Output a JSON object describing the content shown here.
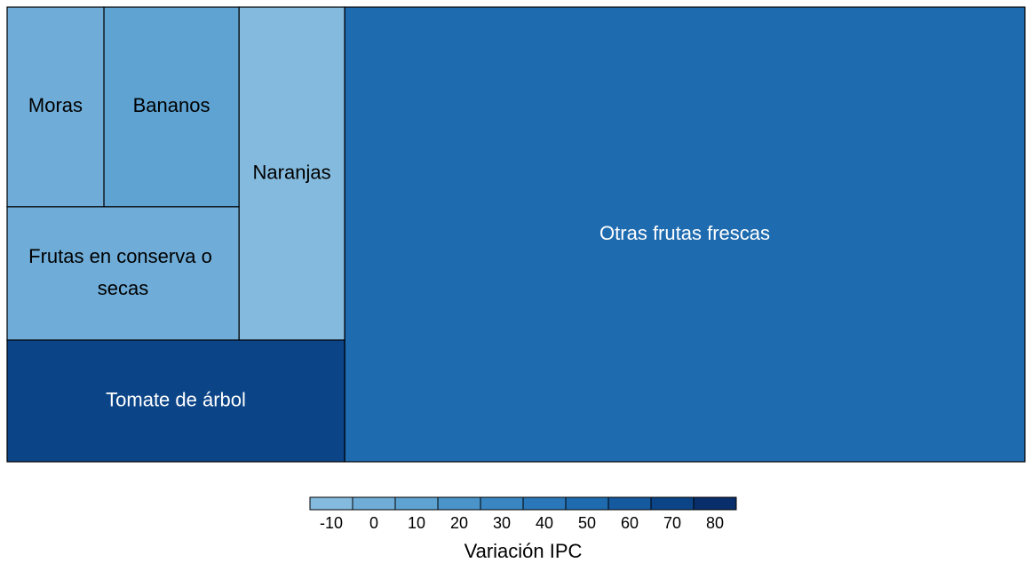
{
  "chart_data": {
    "type": "treemap",
    "categories": [
      "Otras frutas frescas",
      "Tomate de árbol",
      "Naranjas",
      "Frutas en conserva o secas",
      "Bananos",
      "Moras"
    ],
    "sizes": [
      392.2,
      52.1,
      44.6,
      39.2,
      34.2,
      24.5
    ],
    "values": [
      52,
      74,
      -9,
      0,
      7,
      2
    ],
    "legend_title": "Variación IPC",
    "clim": [
      -15,
      85
    ],
    "legend_ticks": [
      -10,
      0,
      10,
      20,
      30,
      40,
      50,
      60,
      70,
      80
    ],
    "legend_colors": [
      "#84badd",
      "#6fadd8",
      "#5ea3d2",
      "#4a94ca",
      "#3986c2",
      "#2a78b9",
      "#1e6bb0",
      "#15599f",
      "#0c4587",
      "#082f6b"
    ]
  }
}
